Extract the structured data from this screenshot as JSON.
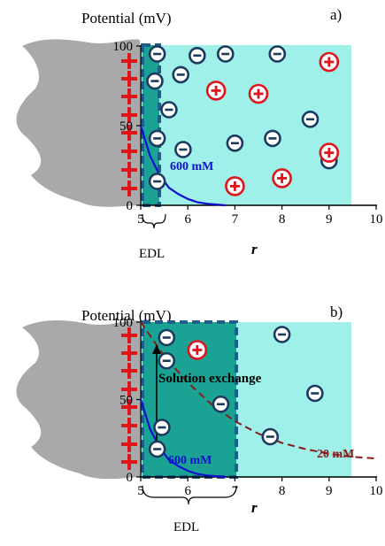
{
  "colors": {
    "solution": "#9ef0e8",
    "edl_fill": "#1aa394",
    "edl_border": "#1d5f8a",
    "surface": "#a9a9a9",
    "positive_charge": "#e0141b",
    "negative_ion": "#1c3a5e",
    "curve_600mM": "#1010cc",
    "curve_20mM": "#8b1a1a"
  },
  "axis_common": {
    "y_ticks": [
      "0",
      "50",
      "100"
    ],
    "x_ticks": [
      "5",
      "6",
      "7",
      "8",
      "9",
      "10"
    ]
  },
  "panel_a": {
    "tag": "a)",
    "y_title": "Potential (mV)",
    "x_title": "r",
    "edl_label": "EDL",
    "curve_label": "600 mM"
  },
  "panel_b": {
    "tag": "b)",
    "y_title": "Potential (mV)",
    "x_title": "r",
    "edl_label": "EDL",
    "curve_label": "600 mM",
    "curve2_label": "20 mM",
    "exchange_label": "Solution exchange"
  },
  "ions_a": {
    "negative": [
      [
        5.35,
        95
      ],
      [
        5.3,
        78
      ],
      [
        5.85,
        82
      ],
      [
        5.6,
        60
      ],
      [
        5.35,
        42
      ],
      [
        5.9,
        35
      ],
      [
        6.2,
        94
      ],
      [
        6.8,
        95
      ],
      [
        7.9,
        95
      ],
      [
        7.0,
        39
      ],
      [
        7.8,
        42
      ],
      [
        8.6,
        54
      ],
      [
        9.0,
        28
      ],
      [
        5.35,
        15
      ]
    ],
    "positive": [
      [
        6.6,
        72
      ],
      [
        7.5,
        70
      ],
      [
        9.0,
        90
      ],
      [
        9.0,
        33
      ],
      [
        8.0,
        17
      ],
      [
        7.0,
        12
      ]
    ]
  },
  "ions_b": {
    "negative": [
      [
        5.55,
        90
      ],
      [
        5.55,
        75
      ],
      [
        6.7,
        47
      ],
      [
        5.45,
        32
      ],
      [
        5.35,
        18
      ],
      [
        8.0,
        92
      ],
      [
        8.7,
        54
      ],
      [
        7.75,
        26
      ]
    ],
    "positive": [
      [
        6.2,
        82
      ]
    ]
  },
  "chart_data": [
    {
      "type": "line",
      "title": "a)",
      "xlabel": "r",
      "ylabel": "Potential (mV)",
      "xlim": [
        5,
        10
      ],
      "ylim": [
        0,
        100
      ],
      "series": [
        {
          "name": "600 mM",
          "x": [
            5.0,
            5.2,
            5.4,
            5.6,
            5.8,
            6.0,
            6.2,
            6.4,
            6.6,
            6.8
          ],
          "y": [
            50,
            31,
            19,
            11,
            7,
            4,
            2,
            1,
            0.5,
            0
          ]
        }
      ]
    },
    {
      "type": "line",
      "title": "b)",
      "xlabel": "r",
      "ylabel": "Potential (mV)",
      "xlim": [
        5,
        10
      ],
      "ylim": [
        0,
        100
      ],
      "series": [
        {
          "name": "600 mM",
          "x": [
            5.0,
            5.2,
            5.4,
            5.6,
            5.8,
            6.0,
            6.2,
            6.4,
            6.6,
            6.8
          ],
          "y": [
            50,
            31,
            19,
            11,
            7,
            4,
            2,
            1,
            0.5,
            0
          ]
        },
        {
          "name": "20 mM",
          "x": [
            5.0,
            5.5,
            6.0,
            6.5,
            7.0,
            7.5,
            8.0,
            8.5,
            9.0,
            9.5,
            10.0
          ],
          "y": [
            100,
            78,
            61,
            47,
            36,
            28,
            22,
            18,
            15,
            13,
            12
          ]
        }
      ]
    }
  ]
}
